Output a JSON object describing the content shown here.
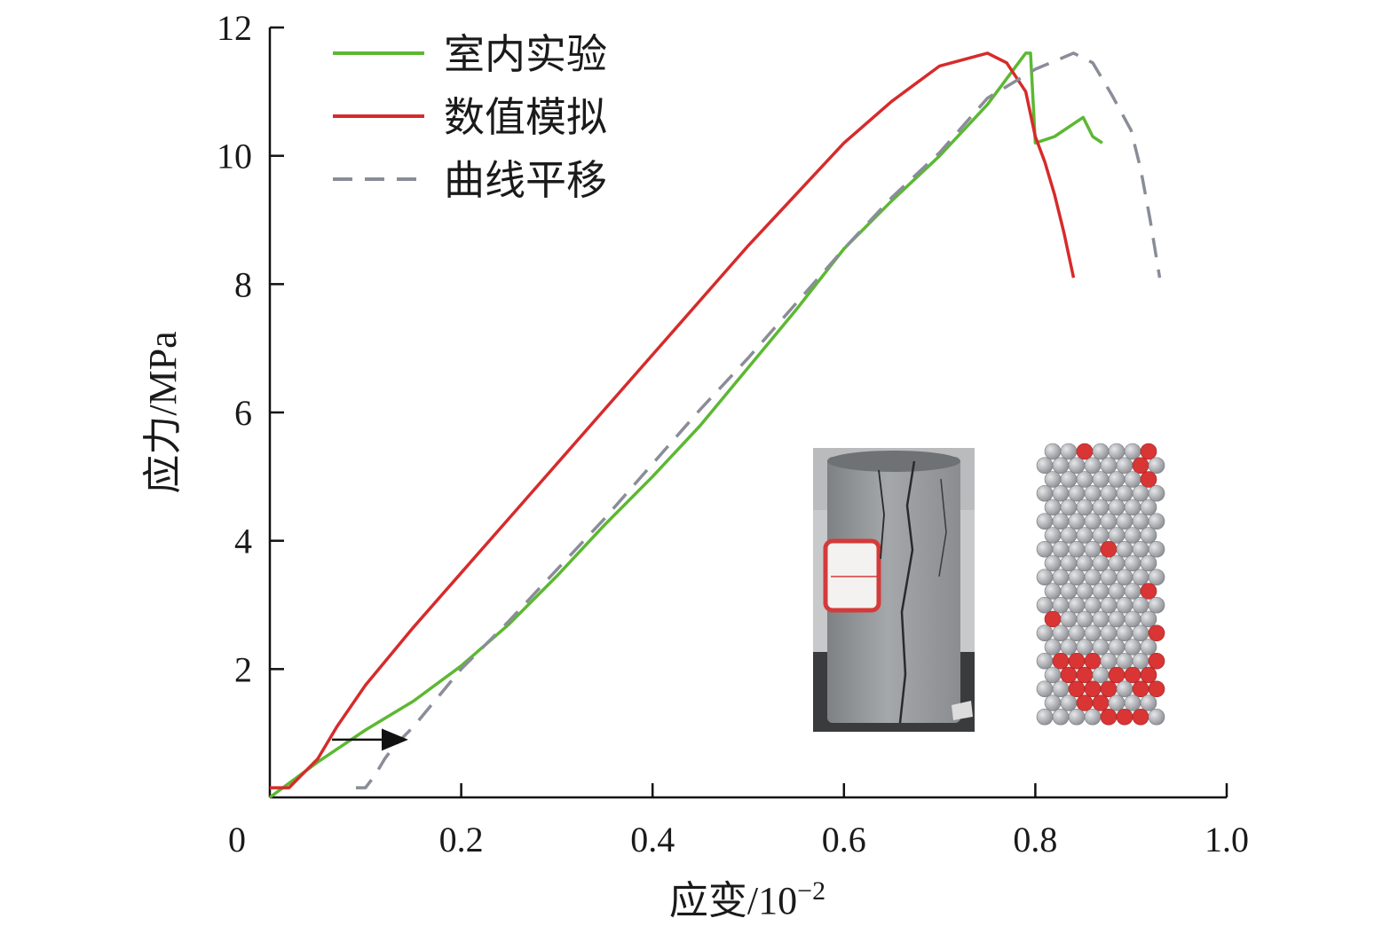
{
  "chart_data": {
    "type": "line",
    "xlabel_base": "应变/10",
    "xlabel_exp": "−2",
    "ylabel": "应力/MPa",
    "xlim": [
      0,
      1.0
    ],
    "ylim": [
      0,
      12
    ],
    "x_ticks": [
      0,
      0.2,
      0.4,
      0.6,
      0.8,
      1.0
    ],
    "x_tick_labels": [
      "0",
      "0.2",
      "0.4",
      "0.6",
      "0.8",
      "1.0"
    ],
    "y_ticks": [
      2,
      4,
      6,
      8,
      10,
      12
    ],
    "y_tick_labels": [
      "2",
      "4",
      "6",
      "8",
      "10",
      "12"
    ],
    "legend_position": "top-left",
    "series": [
      {
        "name": "室内实验",
        "color": "#5cb832",
        "style": "solid",
        "x": [
          0,
          0.05,
          0.1,
          0.15,
          0.2,
          0.25,
          0.3,
          0.35,
          0.4,
          0.45,
          0.5,
          0.55,
          0.6,
          0.65,
          0.7,
          0.75,
          0.79,
          0.795,
          0.8,
          0.82,
          0.85,
          0.86,
          0.87
        ],
        "y": [
          0,
          0.55,
          1.05,
          1.5,
          2.05,
          2.7,
          3.45,
          4.25,
          5.0,
          5.8,
          6.7,
          7.6,
          8.55,
          9.3,
          10.0,
          10.8,
          11.6,
          11.6,
          10.2,
          10.3,
          10.6,
          10.3,
          10.2
        ]
      },
      {
        "name": "数值模拟",
        "color": "#d62b2b",
        "style": "solid",
        "x": [
          0,
          0.02,
          0.03,
          0.05,
          0.07,
          0.1,
          0.15,
          0.2,
          0.25,
          0.3,
          0.35,
          0.4,
          0.45,
          0.5,
          0.55,
          0.6,
          0.65,
          0.7,
          0.75,
          0.77,
          0.79,
          0.8,
          0.81,
          0.82,
          0.83,
          0.84
        ],
        "y": [
          0.15,
          0.15,
          0.3,
          0.6,
          1.1,
          1.75,
          2.65,
          3.5,
          4.35,
          5.2,
          6.05,
          6.9,
          7.75,
          8.6,
          9.4,
          10.2,
          10.85,
          11.4,
          11.6,
          11.45,
          11.0,
          10.3,
          9.9,
          9.4,
          8.8,
          8.1
        ]
      },
      {
        "name": "曲线平移",
        "color": "#8a8d98",
        "style": "dashed",
        "x": [
          0.09,
          0.1,
          0.11,
          0.12,
          0.13,
          0.15,
          0.2,
          0.25,
          0.3,
          0.35,
          0.4,
          0.45,
          0.5,
          0.55,
          0.6,
          0.65,
          0.7,
          0.75,
          0.8,
          0.84,
          0.86,
          0.88,
          0.9,
          0.91,
          0.92,
          0.93
        ],
        "y": [
          0.15,
          0.15,
          0.35,
          0.6,
          0.8,
          1.1,
          2.0,
          2.75,
          3.55,
          4.35,
          5.2,
          6.05,
          6.85,
          7.7,
          8.55,
          9.35,
          10.05,
          10.9,
          11.35,
          11.6,
          11.45,
          10.95,
          10.4,
          9.8,
          9.0,
          8.1
        ]
      }
    ],
    "annotation_arrow": {
      "from": [
        0.065,
        0.9
      ],
      "to": [
        0.14,
        0.9
      ]
    }
  }
}
